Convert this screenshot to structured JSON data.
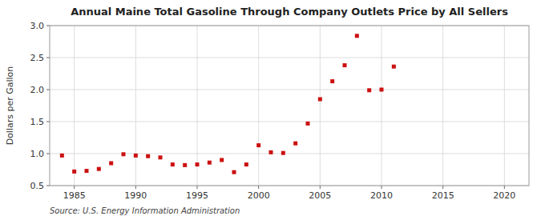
{
  "chart_data": {
    "type": "scatter",
    "title": "Annual Maine Total Gasoline Through Company Outlets Price by All Sellers",
    "y_label": "Dollars per Gallon",
    "annotations": [
      "Source: U.S. Energy Information Administration"
    ],
    "x": [
      1984,
      1985,
      1986,
      1987,
      1988,
      1989,
      1990,
      1991,
      1992,
      1993,
      1994,
      1995,
      1996,
      1997,
      1998,
      1999,
      2000,
      2001,
      2002,
      2003,
      2004,
      2005,
      2006,
      2007,
      2008,
      2009,
      2010,
      2011
    ],
    "values": [
      0.97,
      0.72,
      0.73,
      0.76,
      0.85,
      0.99,
      0.97,
      0.96,
      0.94,
      0.83,
      0.82,
      0.83,
      0.86,
      0.9,
      0.71,
      0.83,
      1.13,
      1.02,
      1.01,
      1.16,
      1.47,
      1.85,
      2.13,
      2.38,
      2.84,
      1.99,
      2.0,
      2.36
    ],
    "color": "#cc1111",
    "marker": "square",
    "xlim": [
      1983,
      2022
    ],
    "ylim": [
      0.5,
      3.0
    ],
    "xticks": [
      1985,
      1990,
      1995,
      2000,
      2005,
      2010,
      2015,
      2020
    ],
    "yticks": [
      0.5,
      {
        "value": 1.0,
        "label": "1.0"
      },
      1.5,
      {
        "value": 2.0,
        "label": "2.0"
      },
      2.5,
      {
        "value": 3.0,
        "label": "3.0"
      }
    ],
    "grid": true
  }
}
